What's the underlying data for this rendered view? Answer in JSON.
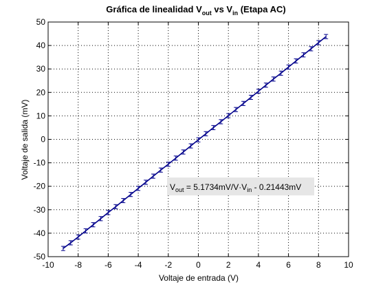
{
  "chart_data": {
    "type": "scatter",
    "title": {
      "prefix": "Gráfica de linealidad V",
      "sub1": "out",
      "mid": " vs V",
      "sub2": "in",
      "suffix": " (Etapa AC)"
    },
    "xlabel": "Voltaje de entrada (V)",
    "ylabel": "Voltaje de salida (mV)",
    "xlim": [
      -10,
      10
    ],
    "ylim": [
      -50,
      50
    ],
    "xticks": [
      -10,
      -8,
      -6,
      -4,
      -2,
      0,
      2,
      4,
      6,
      8,
      10
    ],
    "yticks": [
      -50,
      -40,
      -30,
      -20,
      -10,
      0,
      10,
      20,
      30,
      40,
      50
    ],
    "grid": true,
    "grid_style": "dotted",
    "series": [
      {
        "style": "errorbar-line",
        "color": "#00008b",
        "x": [
          -9.0,
          -8.5,
          -8.0,
          -7.5,
          -7.0,
          -6.5,
          -6.0,
          -5.5,
          -5.0,
          -4.5,
          -4.0,
          -3.5,
          -3.0,
          -2.5,
          -2.0,
          -1.5,
          -1.0,
          -0.5,
          0.0,
          0.5,
          1.0,
          1.5,
          2.0,
          2.5,
          3.0,
          3.5,
          4.0,
          4.5,
          5.0,
          5.5,
          6.0,
          6.5,
          7.0,
          7.5,
          8.0,
          8.5
        ],
        "y": [
          -46.5,
          -44.1,
          -41.6,
          -39.0,
          -36.4,
          -33.8,
          -31.2,
          -28.7,
          -26.1,
          -23.5,
          -20.9,
          -18.3,
          -15.7,
          -13.1,
          -10.6,
          -8.0,
          -5.4,
          -2.8,
          -0.2,
          2.4,
          5.0,
          7.5,
          10.1,
          12.7,
          15.3,
          17.9,
          20.5,
          23.1,
          25.7,
          28.2,
          30.8,
          33.4,
          36.0,
          38.6,
          41.2,
          43.8
        ],
        "error": 0.9
      }
    ],
    "annotation": {
      "v": "V",
      "sub1": "out",
      "mid": " = 5.1734mV/V·V",
      "sub2": "in",
      "tail": " - 0.21443mV",
      "background": "#e6e6e6"
    }
  }
}
